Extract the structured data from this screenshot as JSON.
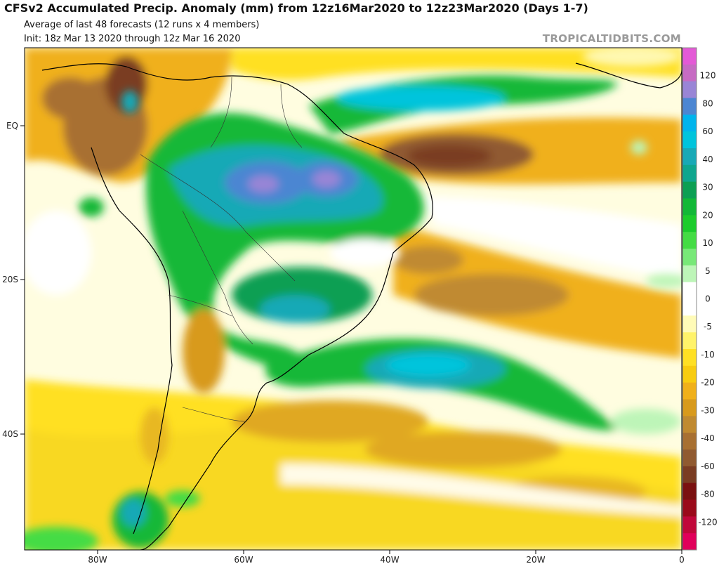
{
  "header": {
    "title": "CFSv2 Accumulated Precip. Anomaly (mm) from 12z16Mar2020 to 12z23Mar2020 (Days 1-7)",
    "subtitle": "Average of last 48 forecasts (12 runs x 4 members)",
    "init": "Init: 18z Mar 13 2020 through 12z Mar 16 2020",
    "watermark": "TROPICALTIDBITS.COM"
  },
  "axes": {
    "lon_labels": [
      "80W",
      "60W",
      "40W",
      "20W",
      "0"
    ],
    "lat_labels": [
      "EQ",
      "20S",
      "40S"
    ]
  },
  "colorbar": {
    "labels": [
      "120",
      "80",
      "60",
      "40",
      "30",
      "20",
      "10",
      "5",
      "0",
      "-5",
      "-10",
      "-20",
      "-30",
      "-40",
      "-60",
      "-80",
      "-120"
    ],
    "colors": [
      "#e35ad6",
      "#c66bc3",
      "#9985d6",
      "#4c86d2",
      "#00b4ec",
      "#00c4dc",
      "#19a9b6",
      "#0fa68e",
      "#0c9f53",
      "#12b837",
      "#1ccc2c",
      "#44dc44",
      "#78e878",
      "#bdf5b8",
      "#ffffff",
      "#ffffff",
      "#fffbb8",
      "#fff36a",
      "#ffe024",
      "#f8cc10",
      "#f0b01a",
      "#d89a1c",
      "#c08a30",
      "#a87032",
      "#905a30",
      "#7a3c22",
      "#7a1010",
      "#9a0a1a",
      "#c0083a",
      "#e0005a"
    ]
  },
  "legend": {
    "wet_colors": [
      "#bdf5b8",
      "#44dc44",
      "#12b837",
      "#0c9f53",
      "#19a9b6",
      "#00c4dc",
      "#4c86d2",
      "#9985d6"
    ],
    "dry_colors": [
      "#fff36a",
      "#ffe024",
      "#f0b01a",
      "#d89a1c",
      "#c08a30",
      "#a87032",
      "#905a30",
      "#7a3c22"
    ]
  }
}
